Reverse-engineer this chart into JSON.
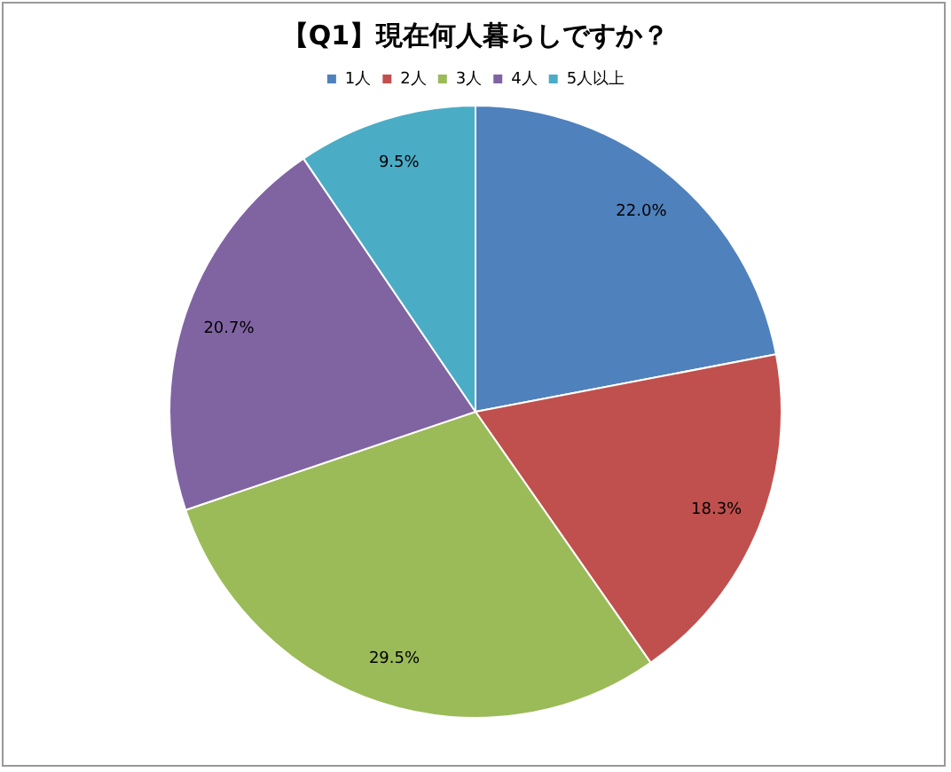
{
  "chart_data": {
    "type": "pie",
    "title": "【Q1】現在何人暮らしですか？",
    "categories": [
      "1人",
      "2人",
      "3人",
      "4人",
      "5人以上"
    ],
    "values": [
      22.0,
      18.3,
      29.5,
      20.7,
      9.5
    ],
    "colors": [
      "#4f81bd",
      "#c0504d",
      "#9bbb59",
      "#8064a2",
      "#4bacc6"
    ],
    "value_labels": [
      "22.0%",
      "18.3%",
      "29.5%",
      "20.7%",
      "9.5%"
    ],
    "legend": "top"
  }
}
